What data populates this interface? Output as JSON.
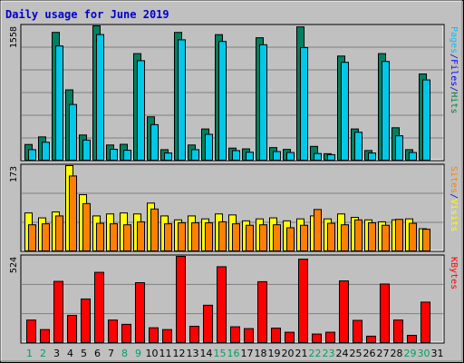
{
  "chart_data": {
    "type": "bar",
    "title": "Daily usage for June 2019",
    "categories": [
      "1",
      "2",
      "3",
      "4",
      "5",
      "6",
      "7",
      "8",
      "9",
      "10",
      "11",
      "12",
      "13",
      "14",
      "15",
      "16",
      "17",
      "18",
      "19",
      "20",
      "21",
      "22",
      "23",
      "24",
      "25",
      "26",
      "27",
      "28",
      "29",
      "30",
      "31"
    ],
    "weekend_days": [
      "1",
      "2",
      "8",
      "9",
      "15",
      "16",
      "22",
      "23",
      "29",
      "30"
    ],
    "panels": [
      {
        "id": "hits",
        "ymax_label": "1558",
        "ymax": 1558,
        "legend": [
          {
            "text": "Pages",
            "color": "#00c0ff"
          },
          {
            "text": "/",
            "color": "#0000cc"
          },
          {
            "text": "Files",
            "color": "#0000ff"
          },
          {
            "text": "/",
            "color": "#0000cc"
          },
          {
            "text": "Hits",
            "color": "#008040"
          }
        ],
        "series": [
          {
            "name": "Hits",
            "color": "#008060",
            "values": [
              182,
              270,
              1482,
              816,
              292,
              1558,
              176,
              184,
              1236,
              503,
              122,
              1482,
              176,
              362,
              1456,
              140,
              131,
              1420,
              146,
              125,
              1546,
              160,
              75,
              1208,
              362,
              112,
              1236,
              376,
              122,
              1000,
              0
            ]
          },
          {
            "name": "Files",
            "color": "#00c8e8",
            "values": [
              122,
              208,
              1325,
              646,
              233,
              1457,
              126,
              115,
              1154,
              412,
              83,
              1396,
              122,
              300,
              1377,
              111,
              92,
              1339,
              100,
              89,
              1306,
              77,
              64,
              1135,
              324,
              83,
              1145,
              283,
              89,
              931,
              0
            ]
          }
        ]
      },
      {
        "id": "visits",
        "ymax_label": "173",
        "ymax": 173,
        "legend": [
          {
            "text": "Sites",
            "color": "#ff8000"
          },
          {
            "text": "/",
            "color": "#0000cc"
          },
          {
            "text": "Visits",
            "color": "#ffff00"
          }
        ],
        "series": [
          {
            "name": "Visits",
            "color": "#ffff00",
            "values": [
              77,
              67,
              79,
              173,
              114,
              71,
              75,
              77,
              75,
              97,
              71,
              63,
              71,
              65,
              75,
              73,
              61,
              65,
              67,
              61,
              65,
              71,
              65,
              75,
              68,
              63,
              59,
              63,
              65,
              45,
              0
            ]
          },
          {
            "name": "Sites",
            "color": "#ff8000",
            "values": [
              53,
              55,
              71,
              152,
              96,
              56,
              55,
              53,
              59,
              85,
              55,
              57,
              57,
              57,
              59,
              55,
              52,
              53,
              53,
              47,
              52,
              84,
              56,
              53,
              63,
              57,
              52,
              64,
              56,
              44,
              0
            ]
          }
        ]
      },
      {
        "id": "kbytes",
        "ymax_label": "524",
        "ymax": 524,
        "legend": [
          {
            "text": "KBytes",
            "color": "#ff0000"
          }
        ],
        "series": [
          {
            "name": "KBytes",
            "color": "#ff0000",
            "values": [
              137,
              79,
              372,
              165,
              265,
              427,
              137,
              111,
              364,
              90,
              79,
              524,
              99,
              227,
              461,
              96,
              85,
              370,
              88,
              63,
              507,
              52,
              63,
              375,
              135,
              39,
              356,
              137,
              44,
              246,
              0
            ]
          }
        ]
      }
    ]
  }
}
